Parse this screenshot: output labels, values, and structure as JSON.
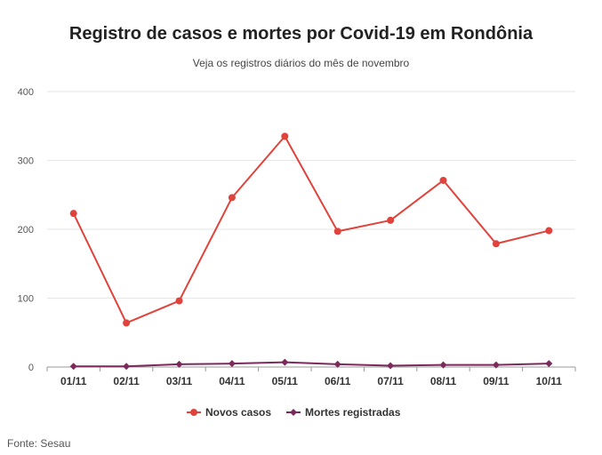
{
  "chart_data": {
    "type": "line",
    "title": "Registro de casos e mortes por Covid-19 em Rondônia",
    "subtitle": "Veja os registros diários do mês de novembro",
    "source": "Fonte: Sesau",
    "categories": [
      "01/11",
      "02/11",
      "03/11",
      "04/11",
      "05/11",
      "06/11",
      "07/11",
      "08/11",
      "09/11",
      "10/11"
    ],
    "series": [
      {
        "name": "Novos casos",
        "color": "#e0433b",
        "marker": "circle",
        "values": [
          223,
          64,
          96,
          246,
          335,
          197,
          213,
          271,
          179,
          198
        ]
      },
      {
        "name": "Mortes registradas",
        "color": "#7b2a5b",
        "marker": "diamond",
        "values": [
          1,
          1,
          4,
          5,
          7,
          4,
          2,
          3,
          3,
          5
        ]
      }
    ],
    "ylim": [
      0,
      400
    ],
    "yticks": [
      0,
      100,
      200,
      300,
      400
    ],
    "grid": true,
    "legend": "bottom-center"
  }
}
